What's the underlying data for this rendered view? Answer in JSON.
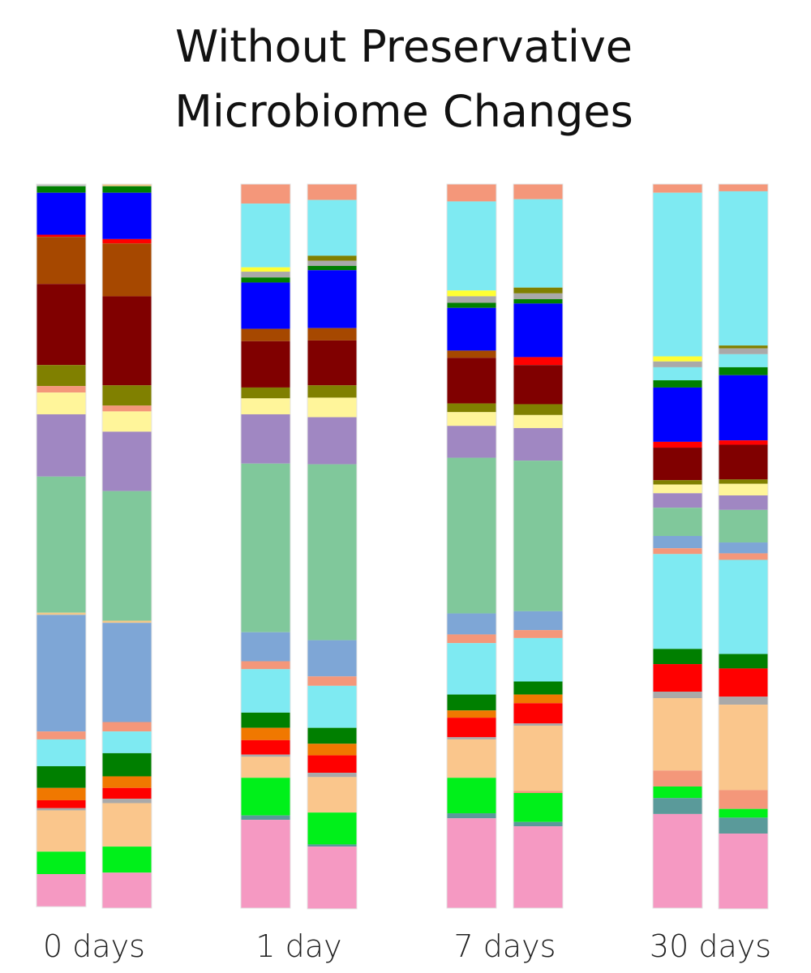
{
  "chart_data": {
    "type": "stacked-bar",
    "title": [
      "Without Preservative",
      "Microbiome Changes"
    ],
    "groups": [
      {
        "label": "0 days",
        "bars": [
          [
            {
              "color": "#c8c8c8",
              "value": 0.3
            },
            {
              "color": "#007f00",
              "value": 0.9
            },
            {
              "color": "#0000ff",
              "value": 5.8
            },
            {
              "color": "#ff0000",
              "value": 0.3
            },
            {
              "color": "#a64800",
              "value": 6.5
            },
            {
              "color": "#800000",
              "value": 11.2
            },
            {
              "color": "#808000",
              "value": 2.9
            },
            {
              "color": "#f4977a",
              "value": 0.9
            },
            {
              "color": "#fff59a",
              "value": 3.0
            },
            {
              "color": "#a087c2",
              "value": 8.6
            },
            {
              "color": "#80c89b",
              "value": 18.8
            },
            {
              "color": "#f2c88a",
              "value": 0.3
            },
            {
              "color": "#7ea6d6",
              "value": 16.1
            },
            {
              "color": "#f4977a",
              "value": 1.1
            },
            {
              "color": "#7eeaf2",
              "value": 3.7
            },
            {
              "color": "#007f00",
              "value": 3.0
            },
            {
              "color": "#f07800",
              "value": 1.7
            },
            {
              "color": "#ff0000",
              "value": 1.1
            },
            {
              "color": "#a9a9a9",
              "value": 0.3
            },
            {
              "color": "#fac68c",
              "value": 5.7
            },
            {
              "color": "#00f01a",
              "value": 3.1
            },
            {
              "color": "#f599c2",
              "value": 4.5
            }
          ],
          [
            {
              "color": "#f2c88a",
              "value": 0.3
            },
            {
              "color": "#007f00",
              "value": 0.9
            },
            {
              "color": "#0000ff",
              "value": 6.4
            },
            {
              "color": "#ff0000",
              "value": 0.6
            },
            {
              "color": "#a64800",
              "value": 7.3
            },
            {
              "color": "#800000",
              "value": 12.3
            },
            {
              "color": "#808000",
              "value": 2.8
            },
            {
              "color": "#f4977a",
              "value": 0.8
            },
            {
              "color": "#fff59a",
              "value": 2.8
            },
            {
              "color": "#a087c2",
              "value": 8.2
            },
            {
              "color": "#80c89b",
              "value": 17.9
            },
            {
              "color": "#f2c88a",
              "value": 0.3
            },
            {
              "color": "#7ea6d6",
              "value": 13.7
            },
            {
              "color": "#f4977a",
              "value": 1.3
            },
            {
              "color": "#7eeaf2",
              "value": 3.0
            },
            {
              "color": "#007f00",
              "value": 3.2
            },
            {
              "color": "#f07800",
              "value": 1.6
            },
            {
              "color": "#ff0000",
              "value": 1.5
            },
            {
              "color": "#a9a9a9",
              "value": 0.6
            },
            {
              "color": "#fac68c",
              "value": 6.0
            },
            {
              "color": "#00f01a",
              "value": 3.6
            },
            {
              "color": "#f599c2",
              "value": 4.9
            }
          ]
        ]
      },
      {
        "label": "1 day",
        "bars": [
          [
            {
              "color": "#f4977a",
              "value": 2.7
            },
            {
              "color": "#7eeaf2",
              "value": 8.8
            },
            {
              "color": "#ffff33",
              "value": 0.6
            },
            {
              "color": "#a9a9a9",
              "value": 0.8
            },
            {
              "color": "#007f00",
              "value": 0.7
            },
            {
              "color": "#0000ff",
              "value": 6.4
            },
            {
              "color": "#a64800",
              "value": 1.7
            },
            {
              "color": "#800000",
              "value": 6.4
            },
            {
              "color": "#808000",
              "value": 1.5
            },
            {
              "color": "#fff59a",
              "value": 2.2
            },
            {
              "color": "#a087c2",
              "value": 6.8
            },
            {
              "color": "#80c89b",
              "value": 23.3
            },
            {
              "color": "#7ea6d6",
              "value": 4.0
            },
            {
              "color": "#f4977a",
              "value": 1.1
            },
            {
              "color": "#7eeaf2",
              "value": 6.0
            },
            {
              "color": "#007f00",
              "value": 2.1
            },
            {
              "color": "#f07800",
              "value": 1.7
            },
            {
              "color": "#ff0000",
              "value": 2.0
            },
            {
              "color": "#a9a9a9",
              "value": 0.3
            },
            {
              "color": "#fac68c",
              "value": 2.9
            },
            {
              "color": "#00f01a",
              "value": 5.2
            },
            {
              "color": "#5a9a9a",
              "value": 0.6
            },
            {
              "color": "#f599c2",
              "value": 12.2
            }
          ],
          [
            {
              "color": "#f4977a",
              "value": 2.2
            },
            {
              "color": "#7eeaf2",
              "value": 7.7
            },
            {
              "color": "#808000",
              "value": 0.7
            },
            {
              "color": "#a9a9a9",
              "value": 0.7
            },
            {
              "color": "#007f00",
              "value": 0.6
            },
            {
              "color": "#0000ff",
              "value": 8.0
            },
            {
              "color": "#a64800",
              "value": 1.7
            },
            {
              "color": "#800000",
              "value": 6.2
            },
            {
              "color": "#808000",
              "value": 1.7
            },
            {
              "color": "#fff59a",
              "value": 2.7
            },
            {
              "color": "#a087c2",
              "value": 6.5
            },
            {
              "color": "#80c89b",
              "value": 24.3
            },
            {
              "color": "#7ea6d6",
              "value": 5.0
            },
            {
              "color": "#f4977a",
              "value": 1.3
            },
            {
              "color": "#7eeaf2",
              "value": 5.8
            },
            {
              "color": "#007f00",
              "value": 2.2
            },
            {
              "color": "#f07800",
              "value": 1.6
            },
            {
              "color": "#ff0000",
              "value": 2.4
            },
            {
              "color": "#a9a9a9",
              "value": 0.6
            },
            {
              "color": "#fac68c",
              "value": 4.9
            },
            {
              "color": "#00f01a",
              "value": 4.4
            },
            {
              "color": "#5a9a9a",
              "value": 0.3
            },
            {
              "color": "#f599c2",
              "value": 8.6
            }
          ]
        ]
      },
      {
        "label": "7 days",
        "bars": [
          [
            {
              "color": "#f4977a",
              "value": 2.4
            },
            {
              "color": "#7eeaf2",
              "value": 12.3
            },
            {
              "color": "#ffff33",
              "value": 0.8
            },
            {
              "color": "#a9a9a9",
              "value": 0.9
            },
            {
              "color": "#007f00",
              "value": 0.7
            },
            {
              "color": "#0000ff",
              "value": 5.9
            },
            {
              "color": "#a64800",
              "value": 1.0
            },
            {
              "color": "#800000",
              "value": 6.3
            },
            {
              "color": "#808000",
              "value": 1.2
            },
            {
              "color": "#fff59a",
              "value": 1.9
            },
            {
              "color": "#a087c2",
              "value": 4.4
            },
            {
              "color": "#80c89b",
              "value": 21.5
            },
            {
              "color": "#7ea6d6",
              "value": 2.9
            },
            {
              "color": "#f4977a",
              "value": 1.2
            },
            {
              "color": "#7eeaf2",
              "value": 7.1
            },
            {
              "color": "#007f00",
              "value": 2.2
            },
            {
              "color": "#f07800",
              "value": 1.0
            },
            {
              "color": "#ff0000",
              "value": 2.7
            },
            {
              "color": "#a9a9a9",
              "value": 0.3
            },
            {
              "color": "#fac68c",
              "value": 5.3
            },
            {
              "color": "#00f01a",
              "value": 4.9
            },
            {
              "color": "#5a9a9a",
              "value": 0.7
            },
            {
              "color": "#f599c2",
              "value": 12.4
            }
          ],
          [
            {
              "color": "#f4977a",
              "value": 2.1
            },
            {
              "color": "#7eeaf2",
              "value": 12.2
            },
            {
              "color": "#808000",
              "value": 0.8
            },
            {
              "color": "#a9a9a9",
              "value": 0.8
            },
            {
              "color": "#007f00",
              "value": 0.6
            },
            {
              "color": "#0000ff",
              "value": 7.4
            },
            {
              "color": "#ff0000",
              "value": 1.1
            },
            {
              "color": "#800000",
              "value": 5.4
            },
            {
              "color": "#808000",
              "value": 1.5
            },
            {
              "color": "#fff59a",
              "value": 1.8
            },
            {
              "color": "#a087c2",
              "value": 4.5
            },
            {
              "color": "#80c89b",
              "value": 20.8
            },
            {
              "color": "#7ea6d6",
              "value": 2.6
            },
            {
              "color": "#f4977a",
              "value": 1.1
            },
            {
              "color": "#7eeaf2",
              "value": 6.0
            },
            {
              "color": "#007f00",
              "value": 1.8
            },
            {
              "color": "#f07800",
              "value": 1.2
            },
            {
              "color": "#ff0000",
              "value": 2.8
            },
            {
              "color": "#a9a9a9",
              "value": 0.3
            },
            {
              "color": "#fac68c",
              "value": 9.0
            },
            {
              "color": "#f4977a",
              "value": 0.3
            },
            {
              "color": "#00f01a",
              "value": 4.0
            },
            {
              "color": "#5a9a9a",
              "value": 0.6
            },
            {
              "color": "#f599c2",
              "value": 11.3
            }
          ]
        ]
      },
      {
        "label": "30 days",
        "bars": [
          [
            {
              "color": "#f4977a",
              "value": 1.2
            },
            {
              "color": "#7eeaf2",
              "value": 22.6
            },
            {
              "color": "#ffff33",
              "value": 0.7
            },
            {
              "color": "#a9a9a9",
              "value": 0.8
            },
            {
              "color": "#7eeaf2",
              "value": 1.8
            },
            {
              "color": "#007f00",
              "value": 1.0
            },
            {
              "color": "#0000ff",
              "value": 7.5
            },
            {
              "color": "#ff0000",
              "value": 0.8
            },
            {
              "color": "#800000",
              "value": 4.5
            },
            {
              "color": "#808000",
              "value": 0.6
            },
            {
              "color": "#fff59a",
              "value": 1.2
            },
            {
              "color": "#a087c2",
              "value": 2.0
            },
            {
              "color": "#80c89b",
              "value": 3.9
            },
            {
              "color": "#7ea6d6",
              "value": 1.7
            },
            {
              "color": "#f4977a",
              "value": 0.8
            },
            {
              "color": "#7eeaf2",
              "value": 13.1
            },
            {
              "color": "#007f00",
              "value": 2.1
            },
            {
              "color": "#ff0000",
              "value": 3.8
            },
            {
              "color": "#a9a9a9",
              "value": 0.9
            },
            {
              "color": "#fac68c",
              "value": 10.0
            },
            {
              "color": "#f4977a",
              "value": 2.2
            },
            {
              "color": "#00f01a",
              "value": 1.6
            },
            {
              "color": "#5a9a9a",
              "value": 2.2
            },
            {
              "color": "#f599c2",
              "value": 13.0
            }
          ],
          [
            {
              "color": "#f4977a",
              "value": 1.0
            },
            {
              "color": "#7eeaf2",
              "value": 21.3
            },
            {
              "color": "#808000",
              "value": 0.4
            },
            {
              "color": "#a9a9a9",
              "value": 0.8
            },
            {
              "color": "#7eeaf2",
              "value": 1.8
            },
            {
              "color": "#007f00",
              "value": 1.1
            },
            {
              "color": "#0000ff",
              "value": 9.0
            },
            {
              "color": "#ff0000",
              "value": 0.6
            },
            {
              "color": "#800000",
              "value": 4.8
            },
            {
              "color": "#808000",
              "value": 0.6
            },
            {
              "color": "#fff59a",
              "value": 1.6
            },
            {
              "color": "#a087c2",
              "value": 2.0
            },
            {
              "color": "#80c89b",
              "value": 4.5
            },
            {
              "color": "#7ea6d6",
              "value": 1.5
            },
            {
              "color": "#f4977a",
              "value": 0.9
            },
            {
              "color": "#7eeaf2",
              "value": 13.0
            },
            {
              "color": "#007f00",
              "value": 2.0
            },
            {
              "color": "#ff0000",
              "value": 3.9
            },
            {
              "color": "#a9a9a9",
              "value": 1.1
            },
            {
              "color": "#fac68c",
              "value": 11.8
            },
            {
              "color": "#f4977a",
              "value": 2.6
            },
            {
              "color": "#00f01a",
              "value": 1.2
            },
            {
              "color": "#5a9a9a",
              "value": 2.2
            },
            {
              "color": "#f599c2",
              "value": 10.4
            }
          ]
        ]
      }
    ]
  }
}
